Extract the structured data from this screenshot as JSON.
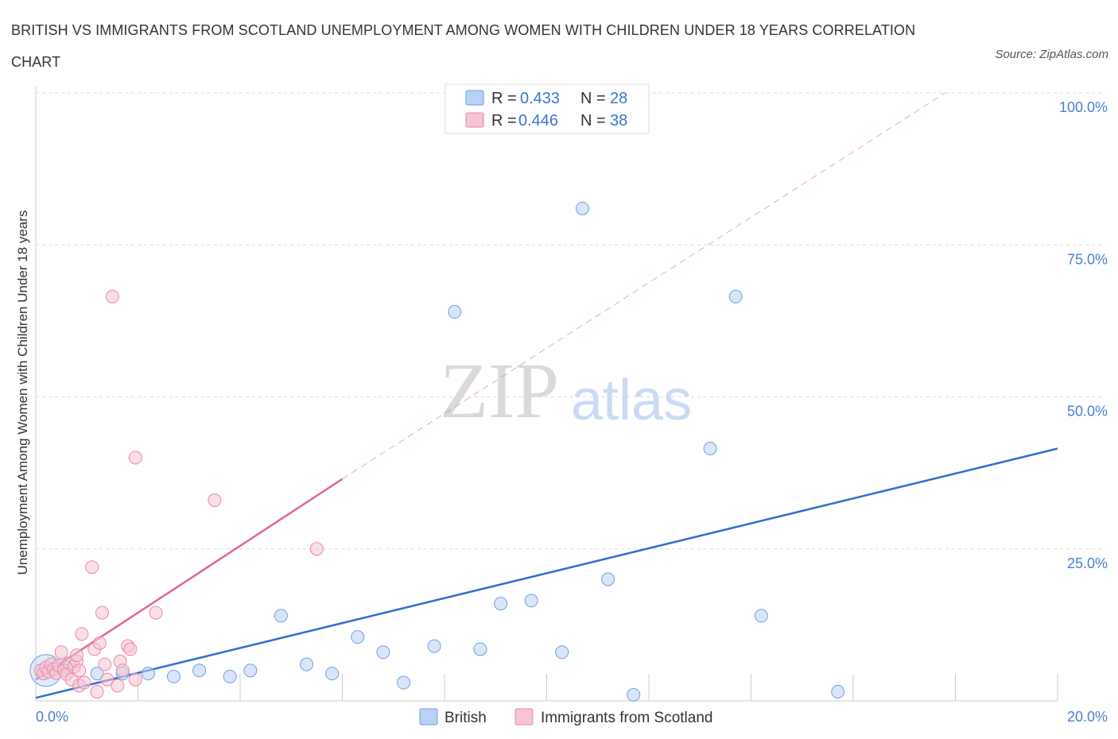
{
  "title": "BRITISH VS IMMIGRANTS FROM SCOTLAND UNEMPLOYMENT AMONG WOMEN WITH CHILDREN UNDER 18 YEARS CORRELATION CHART",
  "source": "Source: ZipAtlas.com",
  "watermark": {
    "zip": "ZIP",
    "atlas": "atlas"
  },
  "colors": {
    "british_fill": "#b9d1f5",
    "british_stroke": "#6f9ee0",
    "british_line": "#2f6fd0",
    "scotland_fill": "#f6c4d3",
    "scotland_stroke": "#e889a8",
    "scotland_line": "#e06690",
    "grid": "#d9d9d9",
    "tick_label": "#4a7fd0"
  },
  "legend": {
    "british": {
      "r_label": "R = ",
      "r_value": "0.433",
      "n_label": "N = ",
      "n_value": "28"
    },
    "scotland": {
      "r_label": "R = ",
      "r_value": "0.446",
      "n_label": "N = ",
      "n_value": "38"
    }
  },
  "chart_data": {
    "type": "scatter",
    "title": "BRITISH VS IMMIGRANTS FROM SCOTLAND UNEMPLOYMENT AMONG WOMEN WITH CHILDREN UNDER 18 YEARS CORRELATION CHART",
    "xlabel": "",
    "ylabel": "Unemployment Among Women with Children Under 18 years",
    "xlim": [
      0,
      20
    ],
    "ylim": [
      0,
      100
    ],
    "x_tick_labels": [
      "0.0%",
      "20.0%"
    ],
    "y_ticks": [
      25,
      50,
      75,
      100
    ],
    "y_tick_labels": [
      "25.0%",
      "50.0%",
      "75.0%",
      "100.0%"
    ],
    "grid": true,
    "legend_position": "top-center",
    "series": [
      {
        "name": "British",
        "R": 0.433,
        "N": 28,
        "trend": {
          "x": [
            0,
            20
          ],
          "y": [
            0.5,
            41.5
          ],
          "style": "solid"
        },
        "points": [
          {
            "x": 0.2,
            "y": 5.0,
            "size": "large"
          },
          {
            "x": 1.2,
            "y": 4.5
          },
          {
            "x": 1.7,
            "y": 4.5
          },
          {
            "x": 2.2,
            "y": 4.5
          },
          {
            "x": 2.7,
            "y": 4.0
          },
          {
            "x": 3.2,
            "y": 5.0
          },
          {
            "x": 3.8,
            "y": 4.0
          },
          {
            "x": 4.2,
            "y": 5.0
          },
          {
            "x": 4.8,
            "y": 14.0
          },
          {
            "x": 5.3,
            "y": 6.0
          },
          {
            "x": 5.8,
            "y": 4.5
          },
          {
            "x": 6.3,
            "y": 10.5
          },
          {
            "x": 6.8,
            "y": 8.0
          },
          {
            "x": 7.2,
            "y": 3.0
          },
          {
            "x": 7.8,
            "y": 9.0
          },
          {
            "x": 8.2,
            "y": 64.0
          },
          {
            "x": 8.7,
            "y": 8.5
          },
          {
            "x": 9.1,
            "y": 16.0
          },
          {
            "x": 9.7,
            "y": 16.5
          },
          {
            "x": 10.3,
            "y": 8.0
          },
          {
            "x": 10.7,
            "y": 81.0
          },
          {
            "x": 11.2,
            "y": 20.0
          },
          {
            "x": 11.7,
            "y": 1.0
          },
          {
            "x": 13.2,
            "y": 41.5
          },
          {
            "x": 13.7,
            "y": 66.5
          },
          {
            "x": 14.2,
            "y": 14.0
          },
          {
            "x": 15.7,
            "y": 1.5
          },
          {
            "x": 0.6,
            "y": 5.5
          }
        ]
      },
      {
        "name": "Immigrants from Scotland",
        "R": 0.446,
        "N": 38,
        "trend": {
          "x": [
            0,
            6
          ],
          "y": [
            3.5,
            36.5
          ],
          "style": "solid",
          "extension": {
            "x": [
              6,
              17.8
            ],
            "y": [
              36.5,
              100
            ],
            "style": "dashed"
          }
        },
        "points": [
          {
            "x": 0.1,
            "y": 5.0
          },
          {
            "x": 0.15,
            "y": 4.5
          },
          {
            "x": 0.2,
            "y": 5.5
          },
          {
            "x": 0.25,
            "y": 4.8
          },
          {
            "x": 0.3,
            "y": 6.0
          },
          {
            "x": 0.35,
            "y": 5.2
          },
          {
            "x": 0.4,
            "y": 4.6
          },
          {
            "x": 0.45,
            "y": 5.8
          },
          {
            "x": 0.5,
            "y": 8.0
          },
          {
            "x": 0.55,
            "y": 5.0
          },
          {
            "x": 0.6,
            "y": 4.4
          },
          {
            "x": 0.65,
            "y": 6.2
          },
          {
            "x": 0.7,
            "y": 3.5
          },
          {
            "x": 0.75,
            "y": 5.6
          },
          {
            "x": 0.8,
            "y": 6.5
          },
          {
            "x": 0.8,
            "y": 7.5
          },
          {
            "x": 0.85,
            "y": 2.5
          },
          {
            "x": 0.85,
            "y": 5.0
          },
          {
            "x": 0.9,
            "y": 11.0
          },
          {
            "x": 0.95,
            "y": 3.0
          },
          {
            "x": 1.1,
            "y": 22.0
          },
          {
            "x": 1.15,
            "y": 8.5
          },
          {
            "x": 1.2,
            "y": 1.5
          },
          {
            "x": 1.25,
            "y": 9.5
          },
          {
            "x": 1.3,
            "y": 14.5
          },
          {
            "x": 1.35,
            "y": 6.0
          },
          {
            "x": 1.4,
            "y": 3.5
          },
          {
            "x": 1.5,
            "y": 66.5
          },
          {
            "x": 1.6,
            "y": 2.5
          },
          {
            "x": 1.65,
            "y": 6.5
          },
          {
            "x": 1.7,
            "y": 5.0
          },
          {
            "x": 1.8,
            "y": 9.0
          },
          {
            "x": 1.85,
            "y": 8.5
          },
          {
            "x": 1.95,
            "y": 3.5
          },
          {
            "x": 1.95,
            "y": 40.0
          },
          {
            "x": 2.35,
            "y": 14.5
          },
          {
            "x": 3.5,
            "y": 33.0
          },
          {
            "x": 5.5,
            "y": 25.0
          }
        ]
      }
    ]
  }
}
